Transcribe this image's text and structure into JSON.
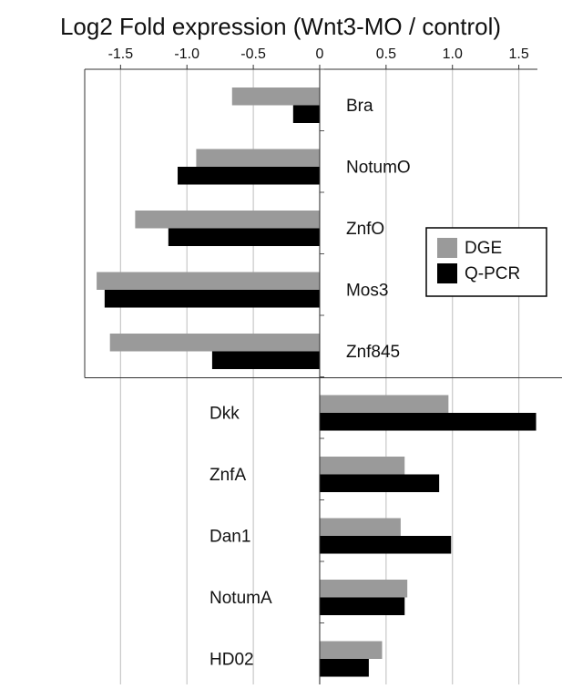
{
  "chart_data": {
    "type": "barh",
    "title": "Log2 Fold expression (Wnt3-MO / control)",
    "categories": [
      "Bra",
      "NotumO",
      "ZnfO",
      "Mos3",
      "Znf845",
      "Dkk",
      "ZnfA",
      "Dan1",
      "NotumA",
      "HD02"
    ],
    "series": [
      {
        "name": "DGE",
        "color": "#9a9a9a",
        "values": [
          -0.66,
          -0.93,
          -1.39,
          -1.68,
          -1.58,
          0.97,
          0.64,
          0.61,
          0.66,
          0.47
        ]
      },
      {
        "name": "Q-PCR",
        "color": "#000000",
        "values": [
          -0.2,
          -1.07,
          -1.14,
          -1.62,
          -0.81,
          1.63,
          0.9,
          0.99,
          0.64,
          0.37
        ]
      }
    ],
    "xlim": [
      -1.77,
      1.64
    ],
    "xticks": [
      -1.5,
      {
        "value": -1,
        "label": "-1.0"
      },
      -0.5,
      0,
      0.5,
      {
        "value": 1,
        "label": "1.0"
      },
      1.5
    ],
    "grid": true,
    "legend": "right"
  }
}
